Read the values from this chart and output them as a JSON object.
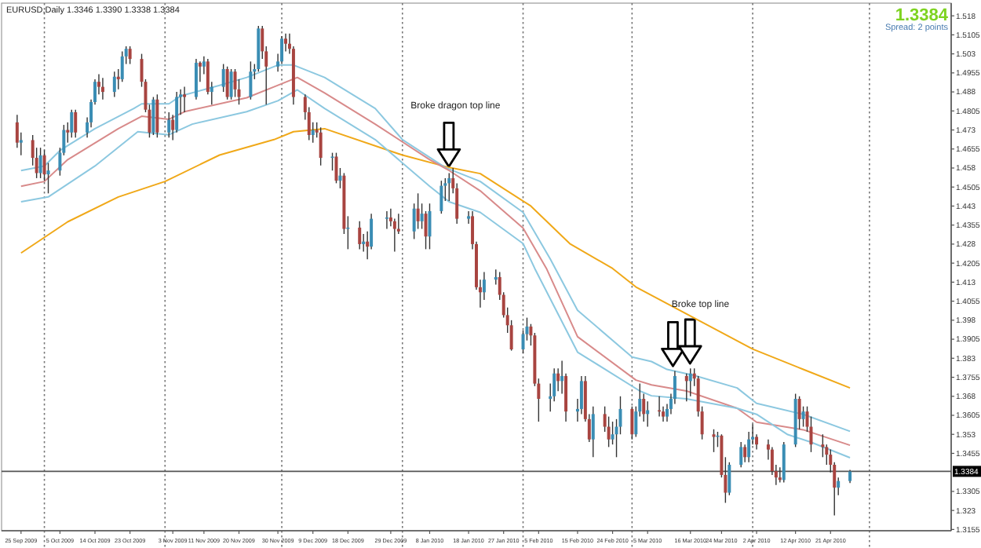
{
  "chart_data": {
    "type": "candlestick",
    "title": "EURUSD,Daily  1.3346 1.3390 1.3338 1.3384",
    "x": [
      "2009-09-24",
      "2009-09-25",
      "2009-09-28",
      "2009-09-29",
      "2009-09-30",
      "2009-10-01",
      "2009-10-02",
      "2009-10-05",
      "2009-10-06",
      "2009-10-07",
      "2009-10-08",
      "2009-10-09",
      "2009-10-12",
      "2009-10-13",
      "2009-10-14",
      "2009-10-15",
      "2009-10-16",
      "2009-10-19",
      "2009-10-20",
      "2009-10-21",
      "2009-10-22",
      "2009-10-23",
      "2009-10-26",
      "2009-10-27",
      "2009-10-28",
      "2009-10-29",
      "2009-10-30",
      "2009-11-02",
      "2009-11-03",
      "2009-11-04",
      "2009-11-05",
      "2009-11-06",
      "2009-11-09",
      "2009-11-10",
      "2009-11-11",
      "2009-11-12",
      "2009-11-13",
      "2009-11-16",
      "2009-11-17",
      "2009-11-18",
      "2009-11-19",
      "2009-11-20",
      "2009-11-23",
      "2009-11-24",
      "2009-11-25",
      "2009-11-26",
      "2009-11-27",
      "2009-11-30",
      "2009-12-01",
      "2009-12-02",
      "2009-12-03",
      "2009-12-04",
      "2009-12-07",
      "2009-12-08",
      "2009-12-09",
      "2009-12-10",
      "2009-12-11",
      "2009-12-14",
      "2009-12-15",
      "2009-12-16",
      "2009-12-17",
      "2009-12-18",
      "2009-12-21",
      "2009-12-22",
      "2009-12-23",
      "2009-12-24",
      "2009-12-28",
      "2009-12-29",
      "2009-12-30",
      "2009-12-31",
      "2010-01-04",
      "2010-01-05",
      "2010-01-06",
      "2010-01-07",
      "2010-01-08",
      "2010-01-11",
      "2010-01-12",
      "2010-01-13",
      "2010-01-14",
      "2010-01-15",
      "2010-01-18",
      "2010-01-19",
      "2010-01-20",
      "2010-01-21",
      "2010-01-22",
      "2010-01-25",
      "2010-01-26",
      "2010-01-27",
      "2010-01-28",
      "2010-01-29",
      "2010-02-01",
      "2010-02-02",
      "2010-02-03",
      "2010-02-04",
      "2010-02-05",
      "2010-02-08",
      "2010-02-09",
      "2010-02-10",
      "2010-02-11",
      "2010-02-12",
      "2010-02-15",
      "2010-02-16",
      "2010-02-17",
      "2010-02-18",
      "2010-02-19",
      "2010-02-22",
      "2010-02-23",
      "2010-02-24",
      "2010-02-25",
      "2010-02-26",
      "2010-03-01",
      "2010-03-02",
      "2010-03-03",
      "2010-03-04",
      "2010-03-05",
      "2010-03-08",
      "2010-03-09",
      "2010-03-10",
      "2010-03-11",
      "2010-03-12",
      "2010-03-15",
      "2010-03-16",
      "2010-03-17",
      "2010-03-18",
      "2010-03-19",
      "2010-03-22",
      "2010-03-23",
      "2010-03-24",
      "2010-03-25",
      "2010-03-26",
      "2010-03-29",
      "2010-03-30",
      "2010-03-31",
      "2010-04-01",
      "2010-04-02",
      "2010-04-05",
      "2010-04-06",
      "2010-04-07",
      "2010-04-08",
      "2010-04-09",
      "2010-04-12",
      "2010-04-13",
      "2010-04-14",
      "2010-04-15",
      "2010-04-16",
      "2010-04-19",
      "2010-04-20",
      "2010-04-21",
      "2010-04-22",
      "2010-04-23",
      "2010-04-26"
    ],
    "ohlc": [
      [
        1.476,
        1.479,
        1.466,
        1.468
      ],
      [
        1.468,
        1.472,
        1.463,
        1.469
      ],
      [
        1.469,
        1.471,
        1.459,
        1.462
      ],
      [
        1.462,
        1.466,
        1.454,
        1.456
      ],
      [
        1.456,
        1.466,
        1.454,
        1.463
      ],
      [
        1.463,
        1.465,
        1.453,
        1.4555
      ],
      [
        1.4555,
        1.46,
        1.448,
        1.457
      ],
      [
        1.457,
        1.466,
        1.455,
        1.464
      ],
      [
        1.464,
        1.475,
        1.463,
        1.473
      ],
      [
        1.473,
        1.476,
        1.468,
        1.472
      ],
      [
        1.472,
        1.481,
        1.47,
        1.48
      ],
      [
        1.48,
        1.481,
        1.47,
        1.472
      ],
      [
        1.472,
        1.478,
        1.47,
        1.476
      ],
      [
        1.476,
        1.485,
        1.474,
        1.484
      ],
      [
        1.484,
        1.493,
        1.483,
        1.492
      ],
      [
        1.492,
        1.495,
        1.487,
        1.49
      ],
      [
        1.49,
        1.4935,
        1.485,
        1.488
      ],
      [
        1.488,
        1.496,
        1.486,
        1.494
      ],
      [
        1.494,
        1.497,
        1.489,
        1.493
      ],
      [
        1.493,
        1.504,
        1.492,
        1.502
      ],
      [
        1.502,
        1.506,
        1.499,
        1.505
      ],
      [
        1.505,
        1.506,
        1.499,
        1.501
      ],
      [
        1.501,
        1.503,
        1.49,
        1.492
      ],
      [
        1.492,
        1.493,
        1.48,
        1.481
      ],
      [
        1.481,
        1.483,
        1.47,
        1.472
      ],
      [
        1.472,
        1.486,
        1.471,
        1.485
      ],
      [
        1.485,
        1.487,
        1.47,
        1.472
      ],
      [
        1.472,
        1.48,
        1.47,
        1.477
      ],
      [
        1.477,
        1.479,
        1.469,
        1.473
      ],
      [
        1.473,
        1.488,
        1.472,
        1.486
      ],
      [
        1.486,
        1.489,
        1.479,
        1.487
      ],
      [
        1.487,
        1.49,
        1.48,
        1.486
      ],
      [
        1.486,
        1.501,
        1.485,
        1.4995
      ],
      [
        1.4995,
        1.5,
        1.492,
        1.498
      ],
      [
        1.498,
        1.502,
        1.495,
        1.5
      ],
      [
        1.5,
        1.501,
        1.487,
        1.488
      ],
      [
        1.488,
        1.492,
        1.483,
        1.49
      ],
      [
        1.49,
        1.499,
        1.488,
        1.497
      ],
      [
        1.497,
        1.498,
        1.485,
        1.486
      ],
      [
        1.486,
        1.497,
        1.485,
        1.496
      ],
      [
        1.496,
        1.497,
        1.486,
        1.489
      ],
      [
        1.489,
        1.493,
        1.483,
        1.486
      ],
      [
        1.486,
        1.5,
        1.485,
        1.496
      ],
      [
        1.496,
        1.499,
        1.493,
        1.497
      ],
      [
        1.497,
        1.514,
        1.496,
        1.513
      ],
      [
        1.513,
        1.514,
        1.501,
        1.504
      ],
      [
        1.504,
        1.506,
        1.483,
        1.498
      ],
      [
        1.498,
        1.503,
        1.496,
        1.5
      ],
      [
        1.5,
        1.51,
        1.499,
        1.509
      ],
      [
        1.509,
        1.511,
        1.504,
        1.507
      ],
      [
        1.507,
        1.511,
        1.503,
        1.505
      ],
      [
        1.505,
        1.506,
        1.483,
        1.486
      ],
      [
        1.486,
        1.487,
        1.477,
        1.48
      ],
      [
        1.48,
        1.482,
        1.469,
        1.471
      ],
      [
        1.471,
        1.476,
        1.468,
        1.473
      ],
      [
        1.473,
        1.476,
        1.47,
        1.472
      ],
      [
        1.472,
        1.474,
        1.459,
        1.462
      ],
      [
        1.462,
        1.464,
        1.457,
        1.4625
      ],
      [
        1.4625,
        1.464,
        1.452,
        1.453
      ],
      [
        1.453,
        1.458,
        1.45,
        1.455
      ],
      [
        1.455,
        1.456,
        1.432,
        1.434
      ],
      [
        1.434,
        1.439,
        1.426,
        1.4345
      ],
      [
        1.4345,
        1.437,
        1.426,
        1.428
      ],
      [
        1.428,
        1.432,
        1.425,
        1.429
      ],
      [
        1.429,
        1.433,
        1.422,
        1.427
      ],
      [
        1.427,
        1.44,
        1.426,
        1.438
      ],
      [
        1.438,
        1.441,
        1.434,
        1.4385
      ],
      [
        1.4385,
        1.442,
        1.435,
        1.437
      ],
      [
        1.437,
        1.438,
        1.425,
        1.434
      ],
      [
        1.434,
        1.44,
        1.432,
        1.433
      ],
      [
        1.433,
        1.444,
        1.43,
        1.442
      ],
      [
        1.442,
        1.448,
        1.434,
        1.437
      ],
      [
        1.437,
        1.444,
        1.434,
        1.44
      ],
      [
        1.44,
        1.441,
        1.426,
        1.431
      ],
      [
        1.431,
        1.444,
        1.426,
        1.441
      ],
      [
        1.441,
        1.453,
        1.44,
        1.451
      ],
      [
        1.451,
        1.454,
        1.445,
        1.452
      ],
      [
        1.452,
        1.456,
        1.445,
        1.454
      ],
      [
        1.454,
        1.458,
        1.448,
        1.45
      ],
      [
        1.45,
        1.452,
        1.436,
        1.438
      ],
      [
        1.438,
        1.441,
        1.436,
        1.439
      ],
      [
        1.439,
        1.441,
        1.426,
        1.428
      ],
      [
        1.428,
        1.429,
        1.41,
        1.411
      ],
      [
        1.411,
        1.414,
        1.403,
        1.409
      ],
      [
        1.409,
        1.417,
        1.406,
        1.414
      ],
      [
        1.414,
        1.418,
        1.412,
        1.415
      ],
      [
        1.415,
        1.417,
        1.406,
        1.408
      ],
      [
        1.408,
        1.409,
        1.399,
        1.4
      ],
      [
        1.4,
        1.403,
        1.393,
        1.396
      ],
      [
        1.396,
        1.398,
        1.386,
        1.3865
      ],
      [
        1.3865,
        1.394,
        1.385,
        1.3925
      ],
      [
        1.3925,
        1.399,
        1.39,
        1.3955
      ],
      [
        1.3955,
        1.3965,
        1.388,
        1.392
      ],
      [
        1.392,
        1.393,
        1.372,
        1.373
      ],
      [
        1.373,
        1.375,
        1.358,
        1.367
      ],
      [
        1.367,
        1.373,
        1.362,
        1.368
      ],
      [
        1.368,
        1.379,
        1.366,
        1.377
      ],
      [
        1.377,
        1.379,
        1.37,
        1.374
      ],
      [
        1.374,
        1.382,
        1.369,
        1.376
      ],
      [
        1.376,
        1.377,
        1.358,
        1.362
      ],
      [
        1.362,
        1.367,
        1.358,
        1.363
      ],
      [
        1.363,
        1.376,
        1.361,
        1.374
      ],
      [
        1.374,
        1.376,
        1.358,
        1.359
      ],
      [
        1.359,
        1.361,
        1.35,
        1.351
      ],
      [
        1.351,
        1.364,
        1.344,
        1.361
      ],
      [
        1.361,
        1.364,
        1.354,
        1.356
      ],
      [
        1.356,
        1.36,
        1.348,
        1.351
      ],
      [
        1.351,
        1.358,
        1.349,
        1.353
      ],
      [
        1.353,
        1.359,
        1.344,
        1.356
      ],
      [
        1.356,
        1.368,
        1.353,
        1.363
      ],
      [
        1.363,
        1.364,
        1.351,
        1.353
      ],
      [
        1.353,
        1.364,
        1.352,
        1.362
      ],
      [
        1.362,
        1.373,
        1.36,
        1.367
      ],
      [
        1.367,
        1.369,
        1.358,
        1.361
      ],
      [
        1.361,
        1.366,
        1.356,
        1.3625
      ],
      [
        1.3625,
        1.368,
        1.36,
        1.362
      ],
      [
        1.362,
        1.364,
        1.358,
        1.36
      ],
      [
        1.36,
        1.365,
        1.358,
        1.363
      ],
      [
        1.363,
        1.369,
        1.361,
        1.367
      ],
      [
        1.367,
        1.378,
        1.365,
        1.376
      ],
      [
        1.376,
        1.377,
        1.366,
        1.374
      ],
      [
        1.374,
        1.379,
        1.368,
        1.377
      ],
      [
        1.377,
        1.379,
        1.372,
        1.375
      ],
      [
        1.375,
        1.376,
        1.36,
        1.362
      ],
      [
        1.362,
        1.364,
        1.351,
        1.353
      ],
      [
        1.353,
        1.355,
        1.346,
        1.352
      ],
      [
        1.352,
        1.354,
        1.348,
        1.3525
      ],
      [
        1.3525,
        1.353,
        1.336,
        1.337
      ],
      [
        1.337,
        1.344,
        1.326,
        1.33
      ],
      [
        1.33,
        1.342,
        1.329,
        1.341
      ],
      [
        1.341,
        1.35,
        1.34,
        1.348
      ],
      [
        1.348,
        1.349,
        1.342,
        1.344
      ],
      [
        1.344,
        1.354,
        1.342,
        1.351
      ],
      [
        1.351,
        1.357,
        1.349,
        1.352
      ],
      [
        1.352,
        1.353,
        1.347,
        1.349
      ],
      [
        1.349,
        1.351,
        1.343,
        1.347
      ],
      [
        1.347,
        1.348,
        1.337,
        1.3385
      ],
      [
        1.3385,
        1.341,
        1.333,
        1.336
      ],
      [
        1.336,
        1.34,
        1.334,
        1.335
      ],
      [
        1.335,
        1.35,
        1.334,
        1.349
      ],
      [
        1.349,
        1.369,
        1.348,
        1.367
      ],
      [
        1.367,
        1.368,
        1.355,
        1.359
      ],
      [
        1.359,
        1.364,
        1.356,
        1.362
      ],
      [
        1.362,
        1.364,
        1.354,
        1.356
      ],
      [
        1.356,
        1.36,
        1.346,
        1.349
      ],
      [
        1.349,
        1.353,
        1.344,
        1.348
      ],
      [
        1.348,
        1.349,
        1.341,
        1.345
      ],
      [
        1.345,
        1.347,
        1.338,
        1.341
      ],
      [
        1.341,
        1.342,
        1.321,
        1.332
      ],
      [
        1.332,
        1.336,
        1.329,
        1.3346
      ],
      [
        1.3346,
        1.339,
        1.3338,
        1.3384
      ]
    ],
    "colors": [
      "#a84440",
      "#3a8db4",
      "#a84440",
      "#a84440",
      "#3a8db4",
      "#a84440",
      "#3a8db4",
      "#3a8db4",
      "#3a8db4",
      "#a84440",
      "#3a8db4",
      "#a84440",
      "#3a8db4",
      "#3a8db4",
      "#3a8db4",
      "#a84440",
      "#a84440",
      "#3a8db4",
      "#a84440",
      "#3a8db4",
      "#3a8db4",
      "#a84440",
      "#a84440",
      "#a84440",
      "#a84440",
      "#3a8db4",
      "#a84440",
      "#3a8db4",
      "#a84440",
      "#3a8db4",
      "#3a8db4",
      "#a84440",
      "#3a8db4",
      "#a84440",
      "#3a8db4",
      "#a84440",
      "#3a8db4",
      "#3a8db4",
      "#a84440",
      "#3a8db4",
      "#a84440",
      "#a84440",
      "#3a8db4",
      "#3a8db4",
      "#3a8db4",
      "#a84440",
      "#a84440",
      "#3a8db4",
      "#3a8db4",
      "#a84440",
      "#a84440",
      "#a84440",
      "#a84440",
      "#a84440",
      "#3a8db4",
      "#a84440",
      "#a84440",
      "#3a8db4",
      "#a84440",
      "#3a8db4",
      "#a84440",
      "#3a8db4",
      "#a84440",
      "#3a8db4",
      "#a84440",
      "#3a8db4",
      "#3a8db4",
      "#a84440",
      "#a84440",
      "#a84440",
      "#3a8db4",
      "#a84440",
      "#3a8db4",
      "#a84440",
      "#3a8db4",
      "#3a8db4",
      "#3a8db4",
      "#3a8db4",
      "#a84440",
      "#a84440",
      "#3a8db4",
      "#a84440",
      "#a84440",
      "#a84440",
      "#3a8db4",
      "#3a8db4",
      "#a84440",
      "#a84440",
      "#a84440",
      "#a84440",
      "#3a8db4",
      "#3a8db4",
      "#a84440",
      "#a84440",
      "#a84440",
      "#3a8db4",
      "#3a8db4",
      "#a84440",
      "#3a8db4",
      "#a84440",
      "#3a8db4",
      "#3a8db4",
      "#a84440",
      "#a84440",
      "#3a8db4",
      "#a84440",
      "#a84440",
      "#3a8db4",
      "#3a8db4",
      "#3a8db4",
      "#a84440",
      "#3a8db4",
      "#3a8db4",
      "#a84440",
      "#3a8db4",
      "#a84440",
      "#a84440",
      "#3a8db4",
      "#3a8db4",
      "#3a8db4",
      "#a84440",
      "#3a8db4",
      "#a84440",
      "#a84440",
      "#a84440",
      "#a84440",
      "#3a8db4",
      "#a84440",
      "#a84440",
      "#3a8db4",
      "#3a8db4",
      "#a84440",
      "#3a8db4",
      "#3a8db4",
      "#a84440",
      "#a84440",
      "#a84440",
      "#a84440",
      "#a84440",
      "#3a8db4",
      "#3a8db4",
      "#a84440",
      "#3a8db4",
      "#a84440",
      "#a84440",
      "#a84440",
      "#a84440",
      "#a84440",
      "#a84440",
      "#3a8db4",
      "#3a8db4"
    ],
    "series": [
      {
        "type": "line",
        "color": "#f0a818",
        "x": [
          "2009-09-25",
          "2009-10-07",
          "2009-10-20",
          "2009-11-01",
          "2009-11-15",
          "2009-11-29",
          "2009-12-04",
          "2009-12-12",
          "2010-01-01",
          "2010-01-13",
          "2010-01-21",
          "2010-02-03",
          "2010-02-13",
          "2010-02-24",
          "2010-03-02",
          "2010-04-01",
          "2010-04-14",
          "2010-04-26"
        ],
        "values": [
          1.4245,
          1.4368,
          1.4466,
          1.4527,
          1.4631,
          1.4692,
          1.4723,
          1.4735,
          1.4631,
          1.4582,
          1.4558,
          1.443,
          1.4282,
          1.4184,
          1.4111,
          1.3866,
          1.3786,
          1.3713
        ]
      },
      {
        "type": "line",
        "color": "#8cc8e0",
        "x": [
          "2009-09-25",
          "2009-10-01",
          "2009-10-05",
          "2009-10-14",
          "2009-10-24",
          "2009-10-26",
          "2009-11-02",
          "2009-11-05",
          "2009-11-15",
          "2009-11-22",
          "2009-11-30",
          "2009-12-04",
          "2009-12-12",
          "2009-12-25",
          "2010-01-01",
          "2010-01-12",
          "2010-01-21",
          "2010-02-01",
          "2010-02-08",
          "2010-02-15",
          "2010-03-01",
          "2010-03-06",
          "2010-03-10",
          "2010-03-17",
          "2010-03-28",
          "2010-04-02",
          "2010-04-14",
          "2010-04-26"
        ],
        "values": [
          1.457,
          1.4588,
          1.4649,
          1.4735,
          1.4815,
          1.4833,
          1.4833,
          1.4864,
          1.4906,
          1.4937,
          1.4986,
          1.4986,
          1.4937,
          1.4815,
          1.4692,
          1.4582,
          1.4527,
          1.4405,
          1.4221,
          1.4019,
          1.3835,
          1.3817,
          1.3786,
          1.3762,
          1.3713,
          1.3652,
          1.3609,
          1.3542
        ]
      },
      {
        "type": "line",
        "color": "#d88a8a",
        "x": [
          "2009-09-25",
          "2009-10-01",
          "2009-10-07",
          "2009-10-20",
          "2009-10-26",
          "2009-11-02",
          "2009-11-06",
          "2009-11-22",
          "2009-11-30",
          "2009-12-05",
          "2009-12-12",
          "2009-12-25",
          "2010-01-08",
          "2010-01-13",
          "2010-01-21",
          "2010-02-01",
          "2010-02-07",
          "2010-02-15",
          "2010-03-02",
          "2010-03-06",
          "2010-03-15",
          "2010-03-28",
          "2010-04-02",
          "2010-04-14",
          "2010-04-26"
        ],
        "values": [
          1.4508,
          1.4527,
          1.4613,
          1.4735,
          1.4784,
          1.4772,
          1.4802,
          1.4857,
          1.4906,
          1.4937,
          1.4876,
          1.4753,
          1.4613,
          1.457,
          1.449,
          1.4343,
          1.4184,
          1.3915,
          1.3744,
          1.3725,
          1.3701,
          1.3633,
          1.3578,
          1.3548,
          1.3487
        ]
      },
      {
        "type": "line",
        "color": "#8cc8e0",
        "x": [
          "2009-09-25",
          "2009-10-02",
          "2009-10-14",
          "2009-10-25",
          "2009-11-02",
          "2009-11-08",
          "2009-11-22",
          "2009-11-30",
          "2009-12-05",
          "2009-12-12",
          "2009-12-25",
          "2010-01-08",
          "2010-01-13",
          "2010-01-21",
          "2010-02-01",
          "2010-02-04",
          "2010-02-15",
          "2010-03-03",
          "2010-03-06",
          "2010-03-15",
          "2010-03-28",
          "2010-04-02",
          "2010-04-10",
          "2010-04-16",
          "2010-04-26"
        ],
        "values": [
          1.4447,
          1.4466,
          1.4588,
          1.4723,
          1.4711,
          1.4753,
          1.4802,
          1.4845,
          1.4888,
          1.4815,
          1.4692,
          1.4508,
          1.4447,
          1.4405,
          1.4282,
          1.4184,
          1.3854,
          1.3701,
          1.3682,
          1.367,
          1.3633,
          1.3609,
          1.3529,
          1.3499,
          1.3438
        ]
      }
    ],
    "xlim": [
      "2009-09-20",
      "2010-05-22"
    ],
    "xticks": [
      {
        "value": "2009-09-25",
        "label": "25 Sep 2009"
      },
      {
        "value": "2009-10-05",
        "label": "5 Oct 2009"
      },
      {
        "value": "2009-10-14",
        "label": "14 Oct 2009"
      },
      {
        "value": "2009-10-23",
        "label": "23 Oct 2009"
      },
      {
        "value": "2009-11-03",
        "label": "3 Nov 2009"
      },
      {
        "value": "2009-11-11",
        "label": "11 Nov 2009"
      },
      {
        "value": "2009-11-20",
        "label": "20 Nov 2009"
      },
      {
        "value": "2009-11-30",
        "label": "30 Nov 2009"
      },
      {
        "value": "2009-12-09",
        "label": "9 Dec 2009"
      },
      {
        "value": "2009-12-18",
        "label": "18 Dec 2009"
      },
      {
        "value": "2009-12-29",
        "label": "29 Dec 2009"
      },
      {
        "value": "2010-01-08",
        "label": "8 Jan 2010"
      },
      {
        "value": "2010-01-18",
        "label": "18 Jan 2010"
      },
      {
        "value": "2010-01-27",
        "label": "27 Jan 2010"
      },
      {
        "value": "2010-02-05",
        "label": "5 Feb 2010"
      },
      {
        "value": "2010-02-15",
        "label": "15 Feb 2010"
      },
      {
        "value": "2010-02-24",
        "label": "24 Feb 2010"
      },
      {
        "value": "2010-03-05",
        "label": "5 Mar 2010"
      },
      {
        "value": "2010-03-16",
        "label": "16 Mar 2010"
      },
      {
        "value": "2010-03-24",
        "label": "24 Mar 2010"
      },
      {
        "value": "2010-04-02",
        "label": "2 Apr 2010"
      },
      {
        "value": "2010-04-12",
        "label": "12 Apr 2010"
      },
      {
        "value": "2010-04-21",
        "label": "21 Apr 2010"
      }
    ],
    "ylim": [
      1.315,
      1.523
    ],
    "yticks": [
      1.3155,
      1.323,
      1.3305,
      1.3455,
      1.353,
      1.3605,
      1.368,
      1.3755,
      1.383,
      1.3905,
      1.398,
      1.4055,
      1.413,
      1.4205,
      1.428,
      1.4355,
      1.443,
      1.4505,
      1.458,
      1.4655,
      1.473,
      1.4805,
      1.488,
      1.4955,
      1.503,
      1.5105,
      1.518
    ],
    "ref_lines": [
      {
        "axis": "x",
        "value": "2009-10-01",
        "label": null,
        "color": "#777777",
        "line_style": "dotted"
      },
      {
        "axis": "x",
        "value": "2009-11-01",
        "label": null,
        "color": "#777777",
        "line_style": "dotted"
      },
      {
        "axis": "x",
        "value": "2009-12-01",
        "label": null,
        "color": "#777777",
        "line_style": "dotted"
      },
      {
        "axis": "x",
        "value": "2010-01-01",
        "label": null,
        "color": "#777777",
        "line_style": "dotted"
      },
      {
        "axis": "x",
        "value": "2010-02-01",
        "label": null,
        "color": "#777777",
        "line_style": "dotted"
      },
      {
        "axis": "x",
        "value": "2010-03-01",
        "label": null,
        "color": "#777777",
        "line_style": "dotted"
      },
      {
        "axis": "x",
        "value": "2010-04-01",
        "label": null,
        "color": "#777777",
        "line_style": "dotted"
      },
      {
        "axis": "x",
        "value": "2010-05-01",
        "label": null,
        "color": "#777777",
        "line_style": "dotted"
      },
      {
        "axis": "y",
        "value": 1.3384,
        "label": "1.3384",
        "color": "#555555",
        "line_style": "solid"
      }
    ],
    "annotations": [
      "1.3384",
      "Spread: 2 points",
      "Broke dragon top line",
      "Broke top line"
    ]
  }
}
